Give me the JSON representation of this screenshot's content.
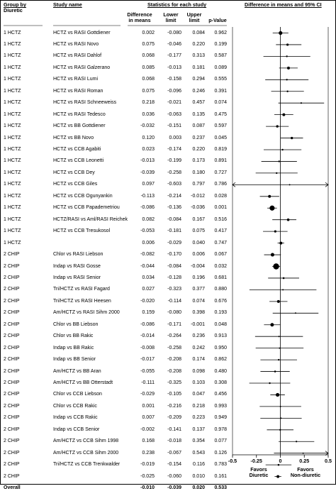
{
  "header": {
    "group_line1": "Group by",
    "group_line2": "Diuretic",
    "study": "Study name",
    "statistics": "Statistics for each study",
    "ci": "Difference in means and 95% CI",
    "col_diff_1": "Difference",
    "col_diff_2": "in means",
    "col_lower_1": "Lower",
    "col_lower_2": "limit",
    "col_upper_1": "Upper",
    "col_upper_2": "limit",
    "col_p": "p-Value"
  },
  "chart_data": {
    "type": "forest",
    "xlim": [
      -0.5,
      0.5
    ],
    "xticks": [
      "-0.5",
      "-0.25",
      "0",
      "0.25",
      "0.5"
    ],
    "xtick_values": [
      -0.5,
      -0.25,
      0,
      0.25,
      0.5
    ],
    "favors_left_1": "Favors",
    "favors_left_2": "Diuretic",
    "favors_right_1": "Favors",
    "favors_right_2": "Non-diuretic",
    "rows": [
      {
        "group": "1 HCTZ",
        "study": "HCTZ vs RASI Gottdiener",
        "diff": "0.002",
        "lower": "-0.080",
        "upper": "0.084",
        "p": "0.962",
        "weight": 2.6
      },
      {
        "group": "1 HCTZ",
        "study": "HCTZ vs RASI Novo",
        "diff": "0.075",
        "lower": "-0.046",
        "upper": "0.220",
        "p": "0.199",
        "weight": 1.6
      },
      {
        "group": "1 HCTZ",
        "study": "HCTZ vs RASI Dahlof",
        "diff": "0.068",
        "lower": "-0.177",
        "upper": "0.313",
        "p": "0.587",
        "weight": 1.2
      },
      {
        "group": "1 HCTZ",
        "study": "HCTZ vs RASI Galzerano",
        "diff": "0.085",
        "lower": "-0.013",
        "upper": "0.181",
        "p": "0.089",
        "weight": 2.0
      },
      {
        "group": "1 HCTZ",
        "study": "HCTZ vs RASI Lumi",
        "diff": "0.068",
        "lower": "-0.158",
        "upper": "0.294",
        "p": "0.555",
        "weight": 1.2
      },
      {
        "group": "1 HCTZ",
        "study": "HCTZ vs RASI Roman",
        "diff": "0.075",
        "lower": "-0.096",
        "upper": "0.246",
        "p": "0.391",
        "weight": 1.2
      },
      {
        "group": "1 HCTZ",
        "study": "HCTZ vs RASI Schneeweiss",
        "diff": "0.218",
        "lower": "-0.021",
        "upper": "0.457",
        "p": "0.074",
        "weight": 1.1
      },
      {
        "group": "1 HCTZ",
        "study": "HCTZ vs RASI Tedesco",
        "diff": "0.036",
        "lower": "-0.063",
        "upper": "0.135",
        "p": "0.475",
        "weight": 2.0
      },
      {
        "group": "1 HCTZ",
        "study": "HCTZ vs BB Gottdiener",
        "diff": "-0.032",
        "lower": "-0.151",
        "upper": "0.087",
        "p": "0.597",
        "weight": 1.7
      },
      {
        "group": "1 HCTZ",
        "study": "HCTZ vs BB Novo",
        "diff": "0.120",
        "lower": "0.003",
        "upper": "0.237",
        "p": "0.045",
        "weight": 1.7
      },
      {
        "group": "1 HCTZ",
        "study": "HCTZ vs CCB Agabiti",
        "diff": "0.023",
        "lower": "-0.174",
        "upper": "0.220",
        "p": "0.819",
        "weight": 1.2
      },
      {
        "group": "1 HCTZ",
        "study": "HCTZ vs CCB Leonetti",
        "diff": "-0.013",
        "lower": "-0.199",
        "upper": "0.173",
        "p": "0.891",
        "weight": 1.2
      },
      {
        "group": "1 HCTZ",
        "study": "HCTZ vs CCB Dey",
        "diff": "-0.039",
        "lower": "-0.258",
        "upper": "0.180",
        "p": "0.727",
        "weight": 1.2
      },
      {
        "group": "1 HCTZ",
        "study": "HCTZ vs CCB Giles",
        "diff": "0.097",
        "lower": "-0.603",
        "upper": "0.797",
        "p": "0.786",
        "weight": 1.0
      },
      {
        "group": "1 HCTZ",
        "study": "HCTZ vs CCB Ogunyankin",
        "diff": "-0.113",
        "lower": "-0.214",
        "upper": "-0.012",
        "p": "0.028",
        "weight": 2.0
      },
      {
        "group": "1 HCTZ",
        "study": "HCTZ vs CCB Papademetriou",
        "diff": "-0.086",
        "lower": "-0.136",
        "upper": "-0.036",
        "p": "0.001",
        "weight": 3.6
      },
      {
        "group": "1 HCTZ",
        "study": "HCTZ/RASI vs Aml/RASI Reichek",
        "diff": "0.082",
        "lower": "-0.084",
        "upper": "0.167",
        "p": "0.516",
        "weight": 1.8
      },
      {
        "group": "1 HCTZ",
        "study": "HCTZ vs CCB Tresukosol",
        "diff": "-0.053",
        "lower": "-0.181",
        "upper": "0.075",
        "p": "0.417",
        "weight": 1.6
      },
      {
        "group": "1 HCTZ",
        "study": "",
        "diff": "0.006",
        "lower": "-0.029",
        "upper": "0.040",
        "p": "0.747",
        "weight": 2.0
      },
      {
        "group": "2 CHIP",
        "study": "Chlor vs RASI Liebson",
        "diff": "-0.082",
        "lower": "-0.170",
        "upper": "0.006",
        "p": "0.067",
        "weight": 2.5
      },
      {
        "group": "2 CHIP",
        "study": "Indap vs RASI Gosse",
        "diff": "-0.044",
        "lower": "-0.084",
        "upper": "-0.004",
        "p": "0.032",
        "weight": 4.2
      },
      {
        "group": "2 CHIP",
        "study": "Indap vs RASI Senior",
        "diff": "0.034",
        "lower": "-0.128",
        "upper": "0.196",
        "p": "0.681",
        "weight": 1.3
      },
      {
        "group": "2 CHIP",
        "study": "Tri/HCTZ vs RASI Fagard",
        "diff": "0.027",
        "lower": "-0.323",
        "upper": "0.377",
        "p": "0.880",
        "weight": 1.0
      },
      {
        "group": "2 CHIP",
        "study": "Tri/HCTZ vs RASI Heesen",
        "diff": "-0.020",
        "lower": "-0.114",
        "upper": "0.074",
        "p": "0.676",
        "weight": 2.0
      },
      {
        "group": "2 CHIP",
        "study": "Am/HCTZ vs RASI Sihm 2000",
        "diff": "0.159",
        "lower": "-0.080",
        "upper": "0.398",
        "p": "0.193",
        "weight": 1.0
      },
      {
        "group": "2 CHIP",
        "study": "Chlor vs BB Liebson",
        "diff": "-0.086",
        "lower": "-0.171",
        "upper": "-0.001",
        "p": "0.048",
        "weight": 2.5
      },
      {
        "group": "2 CHIP",
        "study": "Chlor vs BB Rakic",
        "diff": "-0.014",
        "lower": "-0.264",
        "upper": "0.236",
        "p": "0.913",
        "weight": 1.0
      },
      {
        "group": "2 CHIP",
        "study": "Indap vs BB Rakic",
        "diff": "-0.008",
        "lower": "-0.258",
        "upper": "0.242",
        "p": "0.950",
        "weight": 1.0
      },
      {
        "group": "2 CHIP",
        "study": "Indap vs BB Senior",
        "diff": "-0.017",
        "lower": "-0.208",
        "upper": "0.174",
        "p": "0.862",
        "weight": 1.2
      },
      {
        "group": "2 CHIP",
        "study": "Am/HCTZ vs BB Aran",
        "diff": "-0.055",
        "lower": "-0.208",
        "upper": "0.098",
        "p": "0.480",
        "weight": 1.3
      },
      {
        "group": "2 CHIP",
        "study": "Am/HCTZ vs BB Otterstadt",
        "diff": "-0.111",
        "lower": "-0.325",
        "upper": "0.103",
        "p": "0.308",
        "weight": 1.2
      },
      {
        "group": "2 CHIP",
        "study": "Chlor vs CCB Liebson",
        "diff": "-0.029",
        "lower": "-0.105",
        "upper": "0.047",
        "p": "0.456",
        "weight": 2.6
      },
      {
        "group": "2 CHIP",
        "study": "Chlor vs CCB Rakic",
        "diff": "0.001",
        "lower": "-0.216",
        "upper": "0.218",
        "p": "0.993",
        "weight": 1.0
      },
      {
        "group": "2 CHIP",
        "study": "Indap vs CCB Rakic",
        "diff": "0.007",
        "lower": "-0.209",
        "upper": "0.223",
        "p": "0.949",
        "weight": 1.0
      },
      {
        "group": "2 CHIP",
        "study": "Indap vs CCB Senior",
        "diff": "-0.002",
        "lower": "-0.141",
        "upper": "0.137",
        "p": "0.978",
        "weight": 1.2
      },
      {
        "group": "2 CHIP",
        "study": "Am/HCTZ vs CCB Sihm 1998",
        "diff": "0.168",
        "lower": "-0.018",
        "upper": "0.354",
        "p": "0.077",
        "weight": 1.1
      },
      {
        "group": "2 CHIP",
        "study": "Am/HCTZ vs CCB Sihm 2000",
        "diff": "0.238",
        "lower": "-0.067",
        "upper": "0.543",
        "p": "0.126",
        "weight": 1.0
      },
      {
        "group": "2 CHIP",
        "study": "Tri/HCTZ vs CCB  Trenkwalder",
        "diff": "-0.019",
        "lower": "-0.154",
        "upper": "0.116",
        "p": "0.783",
        "weight": 1.3
      },
      {
        "group": "2 CHIP",
        "study": "",
        "diff": "-0.025",
        "lower": "-0.060",
        "upper": "0.010",
        "p": "0.161",
        "weight": 2.0
      },
      {
        "group": "Overall",
        "study": "",
        "diff": "-0.010",
        "lower": "-0.039",
        "upper": "0.020",
        "p": "0.533",
        "weight": 2.0
      }
    ]
  }
}
